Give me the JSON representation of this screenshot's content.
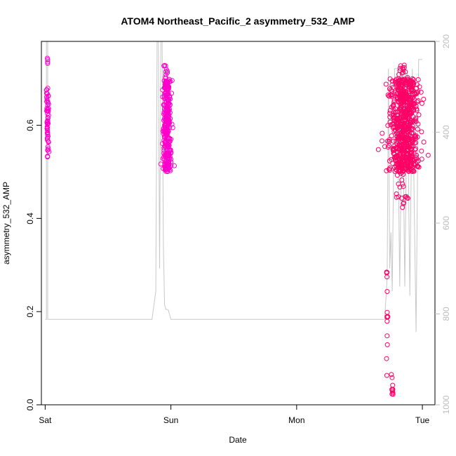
{
  "chart_data": {
    "type": "scatter",
    "title": "ATOM4 Northeast_Pacific_2 asymmetry_532_AMP",
    "xlabel": "Date",
    "ylabel": "asymmetry_532_AMP",
    "x_ticks": [
      "Sat",
      "Sun",
      "Mon",
      "Tue"
    ],
    "y_ticks": [
      "0.0",
      "0.2",
      "0.4",
      "0.6"
    ],
    "y_right_ticks": [
      "200",
      "400",
      "600",
      "800",
      "1000"
    ],
    "xlim": [
      -0.03,
      3.1
    ],
    "ylim": [
      0.0,
      0.78
    ],
    "y_right_lim": [
      1000,
      200
    ],
    "grid": false,
    "colors": {
      "early_points": "#ff00cc",
      "late_points": "#ff0066",
      "depth_line": "#c8c8c8",
      "right_axis": "#bdbdbd"
    },
    "series": [
      {
        "kind": "points",
        "color_key": "early_points",
        "clusters": [
          {
            "x_center": 0.02,
            "x_spread": 0.01,
            "y_min": 0.53,
            "y_max": 0.68,
            "n": 60
          },
          {
            "x_center": 0.02,
            "x_spread": 0.006,
            "y_min": 0.73,
            "y_max": 0.75,
            "n": 4
          },
          {
            "x_center": 0.97,
            "x_spread": 0.03,
            "y_min": 0.5,
            "y_max": 0.7,
            "n": 320
          },
          {
            "x_center": 0.96,
            "x_spread": 0.015,
            "y_min": 0.7,
            "y_max": 0.73,
            "n": 10
          }
        ]
      },
      {
        "kind": "points",
        "color_key": "late_points",
        "clusters": [
          {
            "x_center": 2.85,
            "x_spread": 0.12,
            "y_min": 0.5,
            "y_max": 0.7,
            "n": 700
          },
          {
            "x_center": 2.85,
            "x_spread": 0.05,
            "y_min": 0.42,
            "y_max": 0.5,
            "n": 20
          },
          {
            "x_center": 2.83,
            "x_spread": 0.05,
            "y_min": 0.7,
            "y_max": 0.73,
            "n": 12
          },
          {
            "x_center": 2.72,
            "x_spread": 0.005,
            "y_min": 0.05,
            "y_max": 0.29,
            "n": 14
          },
          {
            "x_center": 2.76,
            "x_spread": 0.01,
            "y_min": 0.02,
            "y_max": 0.065,
            "n": 10
          }
        ]
      },
      {
        "kind": "depth_line",
        "color_key": "depth_line",
        "axis": "right",
        "x": [
          0.0,
          0.01,
          0.01,
          0.02,
          0.02,
          0.04,
          0.3,
          0.6,
          0.85,
          0.88,
          0.89,
          0.9,
          0.91,
          0.92,
          0.93,
          0.94,
          0.95,
          0.96,
          0.97,
          0.98,
          1.0,
          1.0,
          1.5,
          2.0,
          2.5,
          2.7,
          2.72,
          2.73,
          2.74,
          2.75,
          2.76,
          2.78,
          2.8,
          2.82,
          2.84,
          2.86,
          2.88,
          2.9,
          2.92,
          2.95,
          2.97,
          3.0
        ],
        "y": [
          812,
          812,
          170,
          170,
          812,
          812,
          812,
          812,
          812,
          750,
          170,
          180,
          700,
          170,
          180,
          650,
          780,
          790,
          790,
          792,
          812,
          812,
          812,
          812,
          812,
          812,
          720,
          260,
          700,
          620,
          750,
          260,
          260,
          740,
          260,
          740,
          270,
          760,
          260,
          840,
          240,
          240
        ]
      }
    ]
  }
}
